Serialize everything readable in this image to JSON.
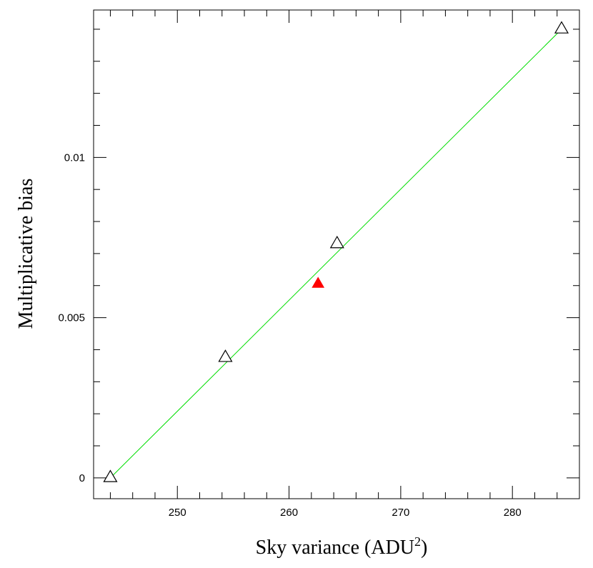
{
  "chart_data": {
    "type": "scatter",
    "title": "",
    "xlabel": "Sky variance (ADU",
    "xlabel_superscript": "2",
    "xlabel_suffix": ")",
    "ylabel": "Multiplicative bias",
    "xlim": [
      242.5,
      286
    ],
    "ylim": [
      -0.00065,
      0.0146
    ],
    "x_ticks": [
      250,
      260,
      270,
      280
    ],
    "x_tick_labels": [
      "250",
      "260",
      "270",
      "280"
    ],
    "y_ticks": [
      0,
      0.005,
      0.01
    ],
    "y_tick_labels": [
      "0",
      "0.005",
      "0.01"
    ],
    "grid": false,
    "series": [
      {
        "marker": "open-triangle",
        "color": "#000000",
        "x": [
          244,
          254.3,
          264.3,
          284.4
        ],
        "y": [
          0.0,
          0.00375,
          0.0073,
          0.014
        ]
      },
      {
        "marker": "filled-triangle",
        "color": "#ff0000",
        "x": [
          262.6
        ],
        "y": [
          0.00605
        ]
      }
    ],
    "fit_line": {
      "color": "#00dd00",
      "x": [
        244,
        284.4
      ],
      "y": [
        0.0,
        0.014
      ]
    }
  }
}
